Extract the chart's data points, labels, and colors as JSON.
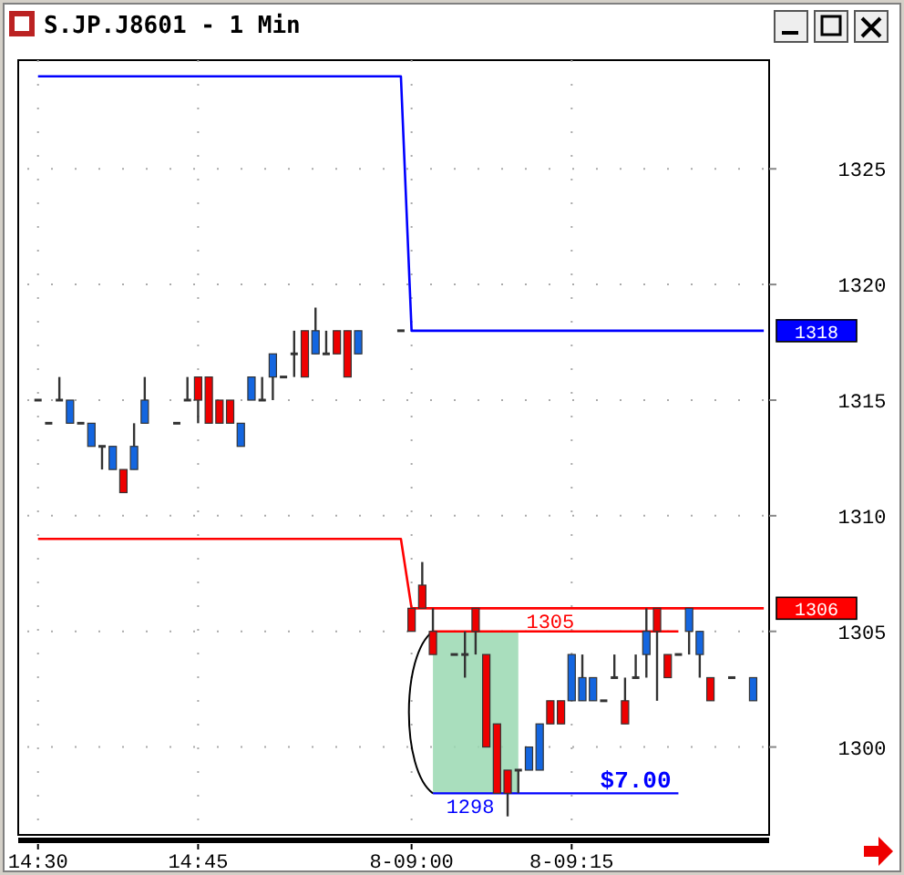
{
  "chart_data": {
    "type": "candlestick",
    "title": "S.JP.J8601 - 1 Min",
    "categories": [
      "14:30",
      null,
      null,
      null,
      null,
      null,
      null,
      null,
      null,
      null,
      null,
      null,
      null,
      null,
      null,
      "14:45",
      null,
      null,
      null,
      null,
      null,
      null,
      null,
      null,
      null,
      null,
      null,
      null,
      null,
      null,
      null,
      null,
      null,
      null,
      null,
      "8-09:00",
      null,
      null,
      null,
      null,
      null,
      null,
      null,
      null,
      null,
      null,
      null,
      null,
      null,
      null,
      "8-09:15",
      null,
      null,
      null,
      null,
      null,
      null,
      null,
      null,
      null,
      null,
      null,
      null,
      null,
      null,
      null,
      null,
      null,
      null
    ],
    "ohlc": [
      [
        1315,
        1315,
        1315,
        1315
      ],
      [
        1314,
        1314,
        1314,
        1314
      ],
      [
        1315,
        1316,
        1315,
        1315
      ],
      [
        1314,
        1315,
        1314,
        1315
      ],
      [
        1314,
        1314,
        1314,
        1314
      ],
      [
        1313,
        1314,
        1313,
        1314
      ],
      [
        1313,
        1313,
        1312,
        1313
      ],
      [
        1312,
        1313,
        1312,
        1313
      ],
      [
        1312,
        1312,
        1311,
        1311
      ],
      [
        1312,
        1314,
        1312,
        1313
      ],
      [
        1314,
        1316,
        1314,
        1315
      ],
      null,
      null,
      [
        1314,
        1314,
        1314,
        1314
      ],
      [
        1315,
        1316,
        1315,
        1315
      ],
      [
        1316,
        1316,
        1314,
        1315
      ],
      [
        1316,
        1316,
        1314,
        1314
      ],
      [
        1315,
        1315,
        1314,
        1314
      ],
      [
        1315,
        1315,
        1314,
        1314
      ],
      [
        1313,
        1314,
        1313,
        1314
      ],
      [
        1315,
        1316,
        1315,
        1316
      ],
      [
        1315,
        1316,
        1315,
        1315
      ],
      [
        1316,
        1317,
        1315,
        1317
      ],
      [
        1316,
        1316,
        1316,
        1316
      ],
      [
        1317,
        1318,
        1316,
        1317
      ],
      [
        1318,
        1318,
        1316,
        1316
      ],
      [
        1317,
        1319,
        1317,
        1318
      ],
      [
        1317,
        1318,
        1317,
        1317
      ],
      [
        1318,
        1318,
        1317,
        1317
      ],
      [
        1318,
        1318,
        1316,
        1316
      ],
      [
        1317,
        1318,
        1317,
        1318
      ],
      null,
      null,
      null,
      [
        1318,
        1318,
        1318,
        1318
      ],
      [
        1306,
        1306,
        1305,
        1305
      ],
      [
        1307,
        1308,
        1306,
        1306
      ],
      [
        1305,
        1306,
        1304,
        1304
      ],
      null,
      [
        1304,
        1304,
        1304,
        1304
      ],
      [
        1304,
        1305,
        1303,
        1304
      ],
      [
        1306,
        1306,
        1304,
        1305
      ],
      [
        1304,
        1304,
        1300,
        1300
      ],
      [
        1301,
        1301,
        1298,
        1298
      ],
      [
        1299,
        1299,
        1297,
        1298
      ],
      [
        1299,
        1299,
        1298,
        1299
      ],
      [
        1299,
        1300,
        1299,
        1300
      ],
      [
        1299,
        1301,
        1299,
        1301
      ],
      [
        1302,
        1302,
        1301,
        1301
      ],
      [
        1302,
        1302,
        1301,
        1301
      ],
      [
        1302,
        1304,
        1302,
        1304
      ],
      [
        1302,
        1304,
        1302,
        1303
      ],
      [
        1302,
        1303,
        1302,
        1303
      ],
      [
        1302,
        1302,
        1302,
        1302
      ],
      [
        1303,
        1304,
        1303,
        1303
      ],
      [
        1302,
        1303,
        1301,
        1301
      ],
      [
        1303,
        1304,
        1303,
        1303
      ],
      [
        1304,
        1306,
        1303,
        1305
      ],
      [
        1306,
        1306,
        1302,
        1305
      ],
      [
        1304,
        1304,
        1303,
        1303
      ],
      [
        1304,
        1304,
        1304,
        1304
      ],
      [
        1305,
        1306,
        1304,
        1306
      ],
      [
        1304,
        1305,
        1303,
        1305
      ],
      [
        1303,
        1303,
        1302,
        1302
      ],
      null,
      [
        1303,
        1303,
        1303,
        1303
      ],
      null,
      [
        1302,
        1303,
        1302,
        1303
      ],
      null
    ],
    "series": [
      {
        "type": "line",
        "color": "#0000ff",
        "values": [
          1329,
          1329,
          1329,
          1329,
          1329,
          1329,
          1329,
          1329,
          1329,
          1329,
          1329,
          1329,
          1329,
          1329,
          1329,
          1329,
          1329,
          1329,
          1329,
          1329,
          1329,
          1329,
          1329,
          1329,
          1329,
          1329,
          1329,
          1329,
          1329,
          1329,
          1329,
          1329,
          1329,
          1329,
          1329,
          1318,
          1318,
          1318,
          1318,
          1318,
          1318,
          1318,
          1318,
          1318,
          1318,
          1318,
          1318,
          1318,
          1318,
          1318,
          1318,
          1318,
          1318,
          1318,
          1318,
          1318,
          1318,
          1318,
          1318,
          1318,
          1318,
          1318,
          1318,
          1318,
          1318,
          1318,
          1318,
          1318,
          1318
        ],
        "value_labels": [
          null,
          null,
          null,
          null,
          null,
          null,
          null,
          null,
          null,
          null,
          null,
          null,
          null,
          null,
          null,
          null,
          null,
          null,
          null,
          null,
          null,
          null,
          null,
          null,
          null,
          null,
          null,
          null,
          null,
          null,
          null,
          null,
          null,
          null,
          null,
          null,
          null,
          null,
          null,
          null,
          null,
          null,
          null,
          null,
          null,
          null,
          null,
          null,
          null,
          null,
          null,
          null,
          null,
          null,
          null,
          null,
          null,
          null,
          null,
          null,
          null,
          null,
          null,
          null,
          null,
          null,
          null,
          null,
          "1318"
        ]
      },
      {
        "type": "line",
        "color": "#ff0000",
        "values": [
          1309,
          1309,
          1309,
          1309,
          1309,
          1309,
          1309,
          1309,
          1309,
          1309,
          1309,
          1309,
          1309,
          1309,
          1309,
          1309,
          1309,
          1309,
          1309,
          1309,
          1309,
          1309,
          1309,
          1309,
          1309,
          1309,
          1309,
          1309,
          1309,
          1309,
          1309,
          1309,
          1309,
          1309,
          1309,
          1306,
          1306,
          1306,
          1306,
          1306,
          1306,
          1306,
          1306,
          1306,
          1306,
          1306,
          1306,
          1306,
          1306,
          1306,
          1306,
          1306,
          1306,
          1306,
          1306,
          1306,
          1306,
          1306,
          1306,
          1306,
          1306,
          1306,
          1306,
          1306,
          1306,
          1306,
          1306,
          1306,
          1306
        ],
        "value_labels": [
          null,
          null,
          null,
          null,
          null,
          null,
          null,
          null,
          null,
          null,
          null,
          null,
          null,
          null,
          null,
          null,
          null,
          null,
          null,
          null,
          null,
          null,
          null,
          null,
          null,
          null,
          null,
          null,
          null,
          null,
          null,
          null,
          null,
          null,
          null,
          null,
          null,
          null,
          null,
          null,
          null,
          null,
          null,
          null,
          null,
          null,
          null,
          null,
          null,
          null,
          null,
          null,
          null,
          null,
          null,
          null,
          null,
          null,
          null,
          null,
          null,
          null,
          null,
          null,
          null,
          null,
          null,
          null,
          "1306"
        ]
      }
    ],
    "ylim": [
      1296.2,
      1329.7
    ],
    "yticks": [
      1300,
      1305,
      1310,
      1315,
      1320,
      1325
    ],
    "grid": true,
    "ref_lines": [
      {
        "axis": "y",
        "value": 1305,
        "label": "1305",
        "color": "#ff0000"
      },
      {
        "axis": "y",
        "value": 1298,
        "label": "1298",
        "color": "#0000ff"
      }
    ],
    "bands": [
      {
        "axis": "y",
        "from": 1298,
        "to": 1305,
        "color": "#9ad8b2"
      }
    ],
    "annotations": [
      {
        "text": "$7.00",
        "y": 1298
      }
    ]
  }
}
